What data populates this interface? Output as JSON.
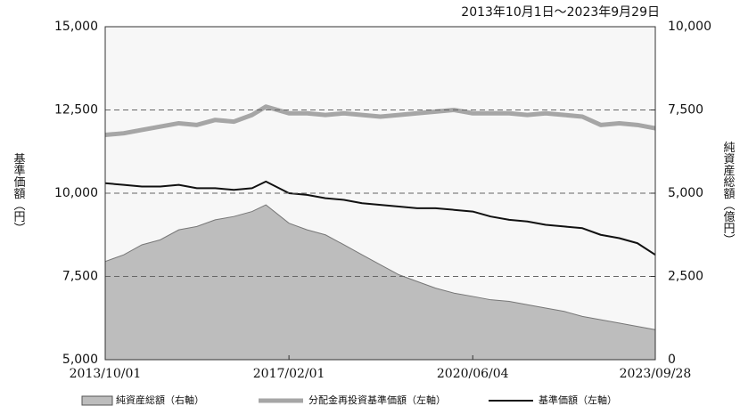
{
  "chart_data": {
    "type": "line",
    "title": "2013年10月1日～2023年9月29日",
    "ylabel": "基準価額（円）",
    "y2label": "純資産総額（億円）",
    "x": [
      "2013/10/01",
      "2014/02/01",
      "2014/06/01",
      "2014/10/01",
      "2015/02/01",
      "2015/06/01",
      "2015/10/01",
      "2016/02/01",
      "2016/06/01",
      "2016/09/01",
      "2017/02/01",
      "2017/06/01",
      "2017/10/01",
      "2018/02/01",
      "2018/06/01",
      "2018/10/01",
      "2019/02/01",
      "2019/06/01",
      "2019/10/01",
      "2020/02/01",
      "2020/06/04",
      "2020/10/01",
      "2021/02/01",
      "2021/06/01",
      "2021/10/01",
      "2022/02/01",
      "2022/06/01",
      "2022/10/01",
      "2023/02/01",
      "2023/06/01",
      "2023/09/28"
    ],
    "xlim": [
      "2013/10/01",
      "2023/09/28"
    ],
    "xticks": [
      "2013/10/01",
      "2017/02/01",
      "2020/06/04",
      "2023/09/28"
    ],
    "ylim": [
      5000,
      15000
    ],
    "yticks": [
      {
        "value": 5000,
        "label": "5,000"
      },
      {
        "value": 7500,
        "label": "7,500"
      },
      {
        "value": 10000,
        "label": "10,000"
      },
      {
        "value": 12500,
        "label": "12,500"
      },
      {
        "value": 15000,
        "label": "15,000"
      }
    ],
    "y2lim": [
      0,
      10000
    ],
    "y2ticks": [
      0,
      {
        "value": 2500,
        "label": "2,500"
      },
      {
        "value": 5000,
        "label": "5,000"
      },
      {
        "value": 7500,
        "label": "7,500"
      },
      {
        "value": 10000,
        "label": "10,000"
      }
    ],
    "grid": true,
    "legend": "bottom",
    "series": [
      {
        "name": "純資産総額（右軸）",
        "color": "#bdbdbd",
        "axis": "y2",
        "kind": "area",
        "values": [
          2950,
          3150,
          3450,
          3600,
          3900,
          4000,
          4200,
          4300,
          4450,
          4650,
          4100,
          3900,
          3750,
          3450,
          3150,
          2850,
          2550,
          2350,
          2150,
          2000,
          1900,
          1800,
          1750,
          1650,
          1550,
          1450,
          1300,
          1200,
          1100,
          1000,
          900
        ]
      },
      {
        "name": "分配金再投資基準価額（左軸）",
        "color": "#a6a6a6",
        "axis": "y",
        "kind": "line",
        "values": [
          11750,
          11800,
          11900,
          12000,
          12100,
          12050,
          12200,
          12150,
          12350,
          12600,
          12400,
          12400,
          12350,
          12400,
          12350,
          12300,
          12350,
          12400,
          12450,
          12500,
          12400,
          12400,
          12400,
          12350,
          12400,
          12350,
          12300,
          12050,
          12100,
          12050,
          11950
        ]
      },
      {
        "name": "基準価額（左軸）",
        "color": "#111111",
        "axis": "y",
        "kind": "line",
        "values": [
          10300,
          10250,
          10200,
          10200,
          10250,
          10150,
          10150,
          10100,
          10150,
          10350,
          10000,
          9950,
          9850,
          9800,
          9700,
          9650,
          9600,
          9550,
          9550,
          9500,
          9450,
          9300,
          9200,
          9150,
          9050,
          9000,
          8950,
          8750,
          8650,
          8500,
          8150
        ]
      }
    ]
  }
}
